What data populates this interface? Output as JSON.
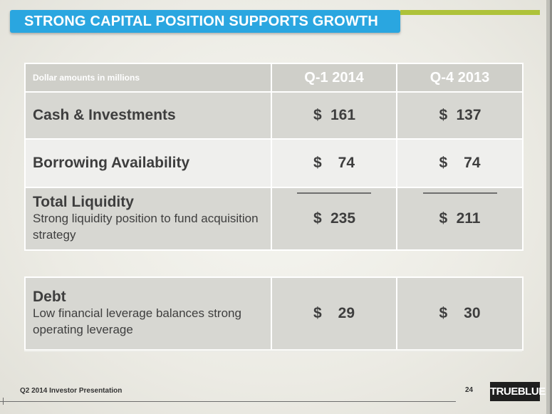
{
  "title": "STRONG CAPITAL POSITION SUPPORTS GROWTH",
  "colors": {
    "title_bar": "#2aa6e0",
    "accent": "#aec23a",
    "text": "#3e3e3e"
  },
  "table": {
    "header": {
      "label": "Dollar amounts in millions",
      "col1": "Q-1 2014",
      "col2": "Q-4 2013"
    },
    "rows": [
      {
        "label": "Cash & Investments",
        "v1_sym": "$",
        "v1": "161",
        "v2_sym": "$",
        "v2": "137"
      },
      {
        "label": "Borrowing Availability",
        "v1_sym": "$",
        "v1": "74",
        "v2_sym": "$",
        "v2": "74"
      },
      {
        "label": "Total Liquidity",
        "sub": "Strong liquidity position to fund acquisition strategy",
        "v1_sym": "$",
        "v1": "235",
        "v2_sym": "$",
        "v2": "211"
      }
    ],
    "debt": {
      "label": "Debt",
      "sub": "Low financial leverage balances strong operating leverage",
      "v1_sym": "$",
      "v1": "29",
      "v2_sym": "$",
      "v2": "30"
    }
  },
  "footer": {
    "text": "Q2 2014 Investor Presentation",
    "page": "24",
    "logo": "TRUEBLUE"
  }
}
